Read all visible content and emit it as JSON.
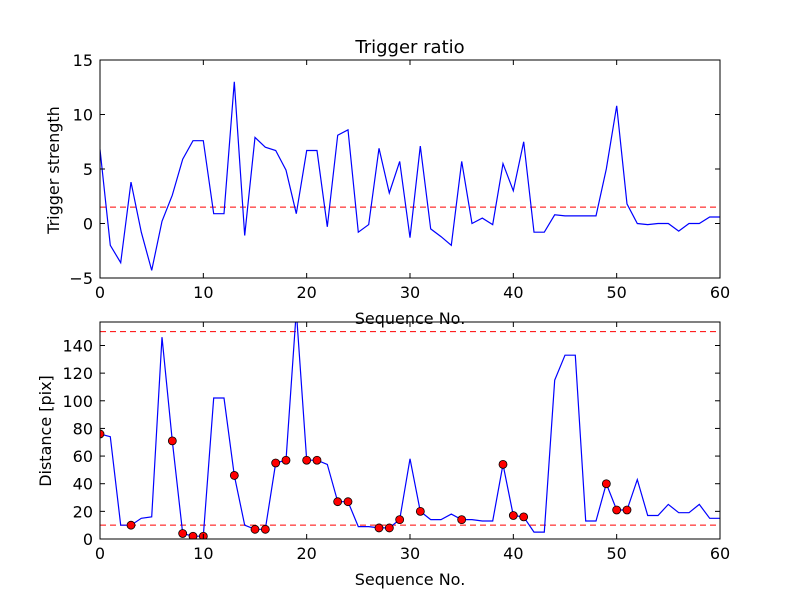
{
  "chart_data": [
    {
      "type": "line",
      "title": "Trigger ratio",
      "xlabel": "Sequence No.",
      "ylabel": "Trigger strength",
      "xlim": [
        0,
        60
      ],
      "ylim": [
        -5,
        15
      ],
      "xticks": [
        "0",
        "10",
        "20",
        "30",
        "40",
        "50",
        "60"
      ],
      "yticks": [
        "−5",
        "0",
        "5",
        "10",
        "15"
      ],
      "grid": false,
      "threshold_lines": [
        1.5
      ],
      "series": [
        {
          "color": "#0000ff",
          "x": [
            0,
            1,
            2,
            3,
            4,
            5,
            6,
            7,
            8,
            9,
            10,
            11,
            12,
            13,
            14,
            15,
            16,
            17,
            18,
            19,
            20,
            21,
            22,
            23,
            24,
            25,
            26,
            27,
            28,
            29,
            30,
            31,
            32,
            33,
            34,
            35,
            36,
            37,
            38,
            39,
            40,
            41,
            42,
            43,
            44,
            45,
            46,
            47,
            48,
            49,
            50,
            51,
            52,
            53,
            54,
            55,
            56,
            57,
            58,
            59,
            60
          ],
          "y": [
            6.8,
            -2.0,
            -3.6,
            3.8,
            -0.8,
            -4.3,
            0.2,
            2.6,
            5.9,
            7.6,
            7.6,
            0.9,
            0.9,
            13.0,
            -1.1,
            7.9,
            7.0,
            6.7,
            4.9,
            0.9,
            6.7,
            6.7,
            -0.3,
            8.1,
            8.6,
            -0.8,
            -0.1,
            6.9,
            2.8,
            5.7,
            -1.3,
            7.1,
            -0.5,
            -1.2,
            -2.0,
            5.7,
            0.0,
            0.5,
            -0.1,
            5.5,
            3.0,
            7.5,
            -0.8,
            -0.8,
            0.8,
            0.7,
            0.7,
            0.7,
            0.7,
            5.0,
            10.8,
            1.8,
            0.0,
            -0.1,
            0.0,
            0.0,
            -0.7,
            0.0,
            0.0,
            0.6,
            0.6
          ]
        }
      ]
    },
    {
      "type": "line",
      "title": "",
      "xlabel": "Sequence No.",
      "ylabel": "Distance [pix]",
      "xlim": [
        0,
        60
      ],
      "ylim": [
        0,
        157
      ],
      "xticks": [
        "0",
        "10",
        "20",
        "30",
        "40",
        "50",
        "60"
      ],
      "yticks": [
        "0",
        "20",
        "40",
        "60",
        "80",
        "100",
        "120",
        "140"
      ],
      "grid": false,
      "threshold_lines": [
        10,
        150
      ],
      "series": [
        {
          "color": "#0000ff",
          "x": [
            0,
            1,
            2,
            3,
            4,
            5,
            6,
            7,
            8,
            9,
            10,
            11,
            12,
            13,
            14,
            15,
            16,
            17,
            18,
            19,
            20,
            21,
            22,
            23,
            24,
            25,
            26,
            27,
            28,
            29,
            30,
            31,
            32,
            33,
            34,
            35,
            36,
            37,
            38,
            39,
            40,
            41,
            42,
            43,
            44,
            45,
            46,
            47,
            48,
            49,
            50,
            51,
            52,
            53,
            54,
            55,
            56,
            57,
            58,
            59,
            60
          ],
          "y": [
            76,
            74,
            10,
            10,
            15,
            16,
            146,
            71,
            4,
            2,
            2,
            102,
            102,
            46,
            10,
            7,
            7,
            55,
            57,
            165,
            57,
            57,
            54,
            27,
            27,
            9,
            9,
            8,
            8,
            14,
            58,
            20,
            14,
            14,
            18,
            14,
            14,
            13,
            13,
            54,
            17,
            16,
            5,
            5,
            115,
            133,
            133,
            13,
            13,
            40,
            21,
            21,
            43,
            17,
            17,
            25,
            19,
            19,
            25,
            15,
            15
          ]
        },
        {
          "color": "#ff0000",
          "marker": "circle",
          "x": [
            0,
            3,
            7,
            8,
            9,
            10,
            13,
            15,
            16,
            17,
            18,
            20,
            21,
            23,
            24,
            27,
            28,
            29,
            31,
            35,
            39,
            40,
            41,
            49,
            50,
            51
          ],
          "y": [
            76,
            10,
            71,
            4,
            2,
            2,
            46,
            7,
            7,
            55,
            57,
            57,
            57,
            27,
            27,
            8,
            8,
            14,
            20,
            14,
            54,
            17,
            16,
            40,
            21,
            21
          ]
        }
      ]
    }
  ]
}
